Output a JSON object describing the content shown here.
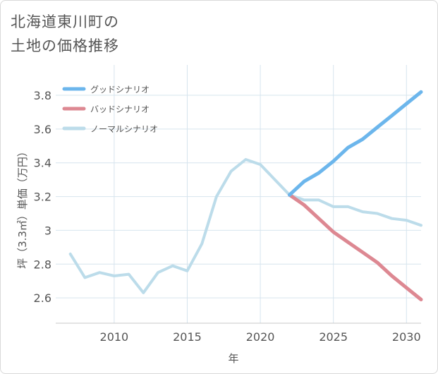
{
  "title": {
    "line1": "北海道東川町の",
    "line2": "土地の価格推移"
  },
  "colors": {
    "good": "#6cb6ec",
    "bad": "#dd8892",
    "normal": "#bcdcea",
    "grid": "#d6e4ee",
    "axis": "#555555"
  },
  "chart_data": {
    "type": "line",
    "title": "北海道東川町の土地の価格推移",
    "xlabel": "年",
    "ylabel": "坪（3.3㎡）単価（万円）",
    "xlim": [
      2006,
      2031
    ],
    "ylim": [
      2.45,
      3.98
    ],
    "x_ticks": [
      2010,
      2015,
      2020,
      2025,
      2030
    ],
    "x_tick_labels": [
      "2010",
      "2015",
      "2020",
      "2025",
      "2030"
    ],
    "y_ticks": [
      2.6,
      2.8,
      3,
      3.2,
      3.4,
      3.6,
      3.8
    ],
    "y_tick_labels": [
      "2.6",
      "2.8",
      "3",
      "3.2",
      "3.4",
      "3.6",
      "3.8"
    ],
    "grid": true,
    "legend_position": "top-left",
    "series": [
      {
        "name": "グッドシナリオ",
        "color": "#6cb6ec",
        "x": [
          2022,
          2023,
          2024,
          2025,
          2026,
          2027,
          2028,
          2029,
          2030,
          2031
        ],
        "y": [
          3.21,
          3.29,
          3.34,
          3.41,
          3.49,
          3.54,
          3.61,
          3.68,
          3.75,
          3.82
        ]
      },
      {
        "name": "バッドシナリオ",
        "color": "#dd8892",
        "x": [
          2022,
          2023,
          2024,
          2025,
          2026,
          2027,
          2028,
          2029,
          2030,
          2031
        ],
        "y": [
          3.21,
          3.15,
          3.07,
          2.99,
          2.93,
          2.87,
          2.81,
          2.73,
          2.66,
          2.59
        ]
      },
      {
        "name": "ノーマルシナリオ",
        "color": "#bcdcea",
        "x": [
          2007,
          2008,
          2009,
          2010,
          2011,
          2012,
          2013,
          2014,
          2015,
          2016,
          2017,
          2018,
          2019,
          2020,
          2021,
          2022,
          2023,
          2024,
          2025,
          2026,
          2027,
          2028,
          2029,
          2030,
          2031
        ],
        "y": [
          2.86,
          2.72,
          2.75,
          2.73,
          2.74,
          2.63,
          2.75,
          2.79,
          2.76,
          2.92,
          3.2,
          3.35,
          3.42,
          3.39,
          3.3,
          3.21,
          3.18,
          3.18,
          3.14,
          3.14,
          3.11,
          3.1,
          3.07,
          3.06,
          3.03
        ]
      }
    ]
  }
}
